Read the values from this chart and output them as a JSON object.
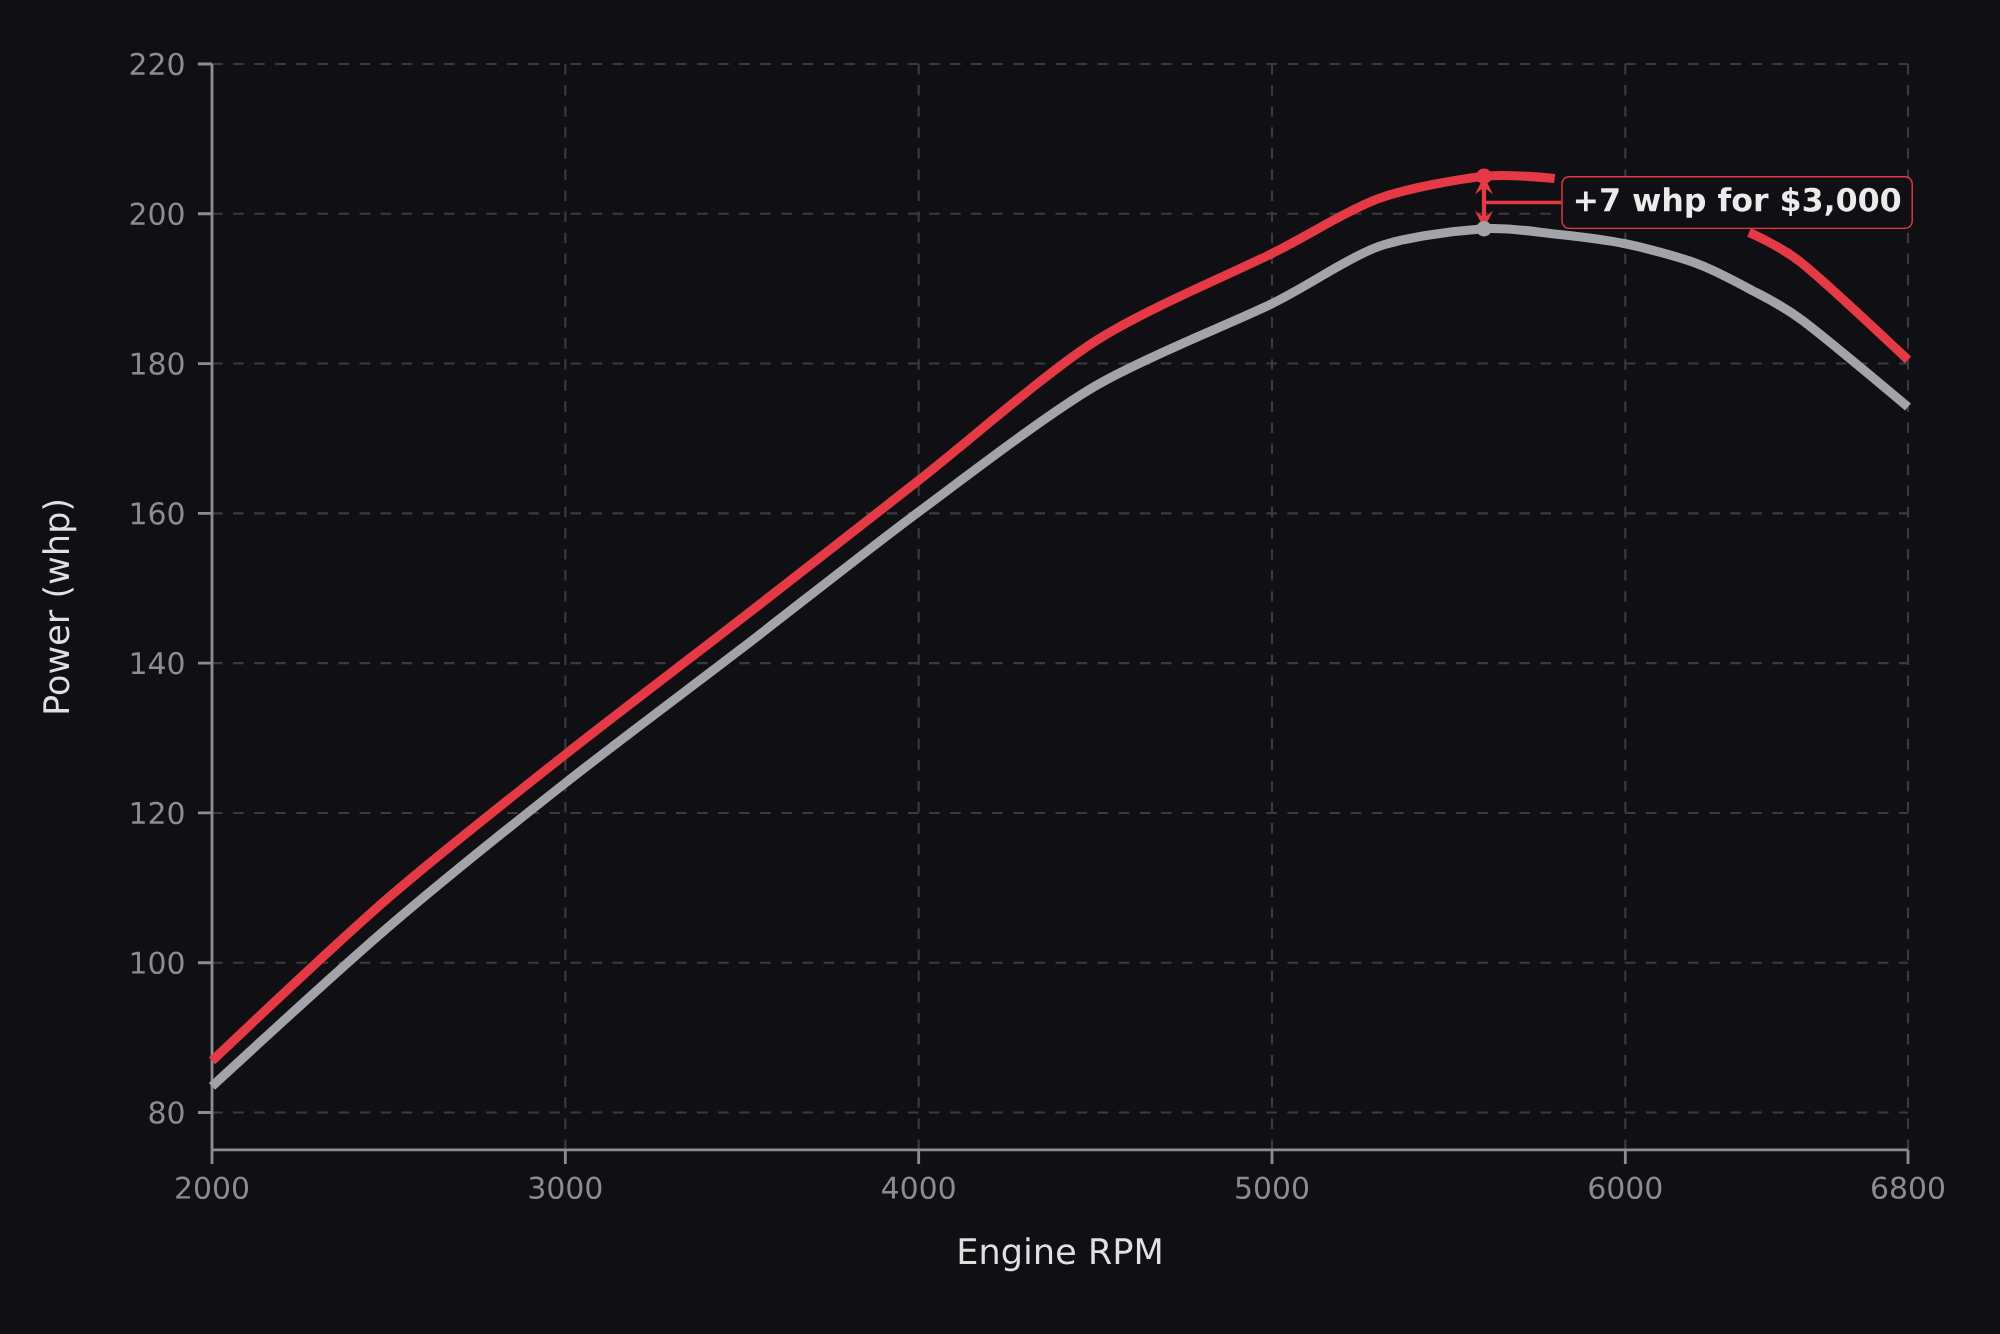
{
  "chart_data": {
    "type": "line",
    "xlabel": "Engine RPM",
    "ylabel": "Power (whp)",
    "x": [
      2000,
      2500,
      3000,
      3500,
      4000,
      4500,
      5000,
      5300,
      5600,
      5800,
      6000,
      6200,
      6350,
      6500,
      6800
    ],
    "series": [
      {
        "color": "#e63946",
        "values": [
          86.9,
          108.7,
          127.8,
          146,
          164.4,
          183,
          194.7,
          202,
          205,
          204.7,
          null,
          null,
          197.5,
          193.4,
          180.5
        ]
      },
      {
        "color": "#a3a3aa",
        "values": [
          83.5,
          104.8,
          124,
          142,
          160.2,
          177,
          188,
          195.6,
          198,
          197.3,
          196,
          193.4,
          190,
          185.8,
          174.2
        ]
      }
    ],
    "xlim": [
      2000,
      6800
    ],
    "ylim": [
      75,
      220
    ],
    "xticks": [
      2000,
      3000,
      4000,
      5000,
      6000,
      6800
    ],
    "yticks": [
      80,
      100,
      120,
      140,
      160,
      180,
      200,
      220
    ],
    "grid": true,
    "line_style": "solid",
    "annotations": [
      "+7 whp for $3,000"
    ]
  }
}
